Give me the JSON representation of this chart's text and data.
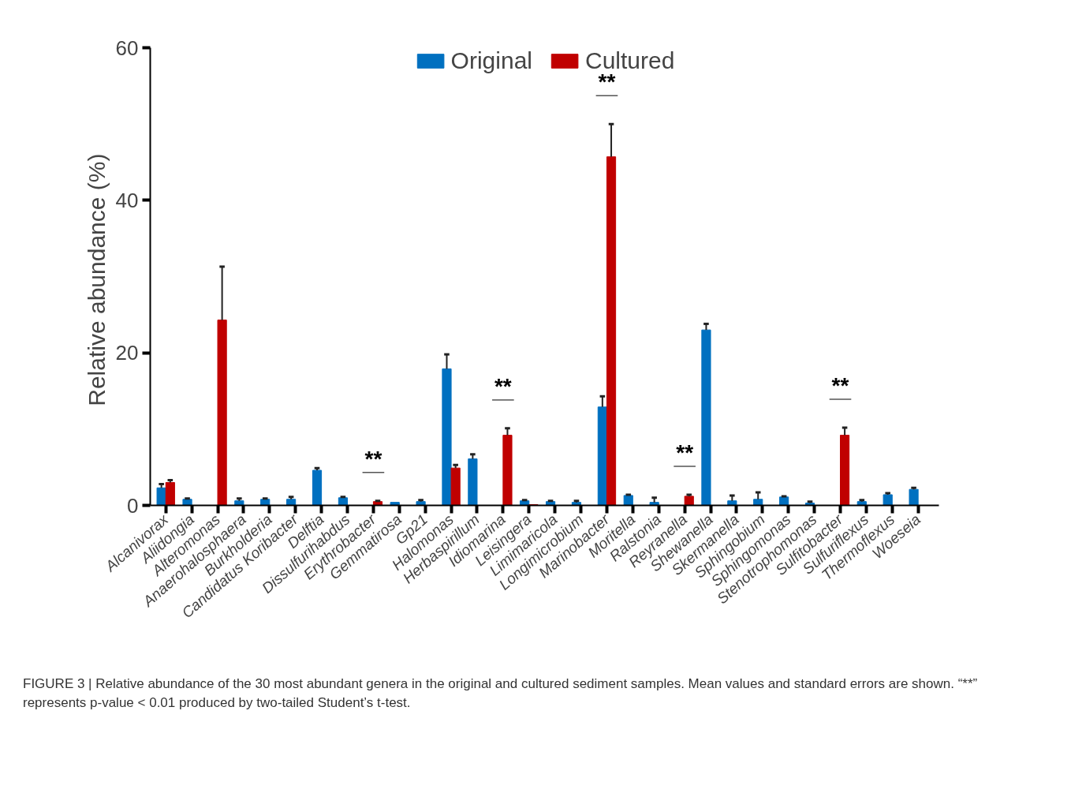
{
  "chart_data": {
    "type": "bar",
    "ylabel": "Relative  abundance (%)",
    "categories": [
      "Alcanivorax",
      "Aliidongia",
      "Alteromonas",
      "Anaerohalosphaera",
      "Burkholderia",
      "Candidatus Koribacter",
      "Delftia",
      "Dissulfurihabdus",
      "Erythrobacter",
      "Gemmatirosa",
      "Gp21",
      "Halomonas",
      "Herbaspirillum",
      "Idiomarina",
      "Leisingera",
      "Limimaricola",
      "Longimicrobium",
      "Marinobacter",
      "Moritella",
      "Ralstonia",
      "Reyranella",
      "Shewanella",
      "Skermanella",
      "Sphingobium",
      "Sphingomonas",
      "Stenotrophomonas",
      "Sulfitobacter",
      "Sulfuriflexus",
      "Thermoflexus",
      "Woeseia"
    ],
    "series": [
      {
        "name": "Original",
        "color": "#0070c0",
        "values": [
          2.3,
          0.8,
          null,
          0.6,
          0.8,
          0.8,
          4.6,
          1.0,
          null,
          0.4,
          0.5,
          17.9,
          6.1,
          null,
          0.6,
          0.5,
          0.4,
          12.9,
          1.3,
          0.4,
          null,
          23.0,
          0.6,
          0.8,
          1.1,
          0.3,
          null,
          0.5,
          1.4,
          2.1
        ],
        "errors": [
          [
            2.3,
            2.8
          ],
          [
            0.8,
            0.9
          ],
          null,
          [
            0.6,
            0.9
          ],
          [
            0.8,
            0.9
          ],
          [
            0.8,
            1.1
          ],
          [
            4.6,
            4.9
          ],
          [
            1.0,
            1.1
          ],
          null,
          null,
          [
            0.5,
            0.7
          ],
          [
            17.9,
            19.8
          ],
          [
            6.1,
            6.7
          ],
          null,
          [
            0.6,
            0.7
          ],
          [
            0.5,
            0.6
          ],
          [
            0.4,
            0.6
          ],
          [
            12.9,
            14.3
          ],
          [
            1.3,
            1.4
          ],
          [
            0.4,
            1.0
          ],
          null,
          [
            23.0,
            23.8
          ],
          [
            0.6,
            1.3
          ],
          [
            0.8,
            1.7
          ],
          [
            1.1,
            1.2
          ],
          [
            0.3,
            0.5
          ],
          null,
          [
            0.5,
            0.7
          ],
          [
            1.4,
            1.6
          ],
          [
            2.1,
            2.3
          ]
        ]
      },
      {
        "name": "Cultured",
        "color": "#c00000",
        "values": [
          3.0,
          null,
          24.3,
          null,
          null,
          null,
          null,
          null,
          0.5,
          null,
          null,
          4.9,
          null,
          9.2,
          0.1,
          null,
          null,
          45.7,
          null,
          null,
          1.2,
          null,
          null,
          null,
          null,
          null,
          9.2,
          null,
          null,
          null
        ],
        "errors": [
          [
            3.0,
            3.3
          ],
          null,
          [
            24.3,
            31.3
          ],
          null,
          null,
          null,
          null,
          null,
          [
            0.5,
            0.6
          ],
          null,
          null,
          [
            4.9,
            5.3
          ],
          null,
          [
            9.2,
            10.1
          ],
          null,
          null,
          null,
          [
            45.7,
            50.0
          ],
          null,
          null,
          [
            1.2,
            1.4
          ],
          null,
          null,
          null,
          null,
          null,
          [
            9.2,
            10.2
          ],
          null,
          null,
          null
        ]
      }
    ],
    "ylim": [
      0,
      60
    ],
    "yticks": [
      0,
      20,
      40,
      60
    ],
    "grid": false,
    "legend": "top",
    "annotations": [
      {
        "text": "**",
        "x": "Erythrobacter",
        "y": 0.6
      },
      {
        "text": "**",
        "x": "Idiomarina",
        "y": 10.1
      },
      {
        "text": "**",
        "x": "Marinobacter",
        "y": 50.0
      },
      {
        "text": "**",
        "x": "Reyranella",
        "y": 1.4
      },
      {
        "text": "**",
        "x": "Sulfitobacter",
        "y": 10.2
      },
      "FIGURE 3 | Relative abundance of the 30 most abundant genera in the original and cultured sediment samples. Mean values and standard errors are shown. “**” represents p-value < 0.01 produced by two-tailed Student’s t-test."
    ]
  }
}
